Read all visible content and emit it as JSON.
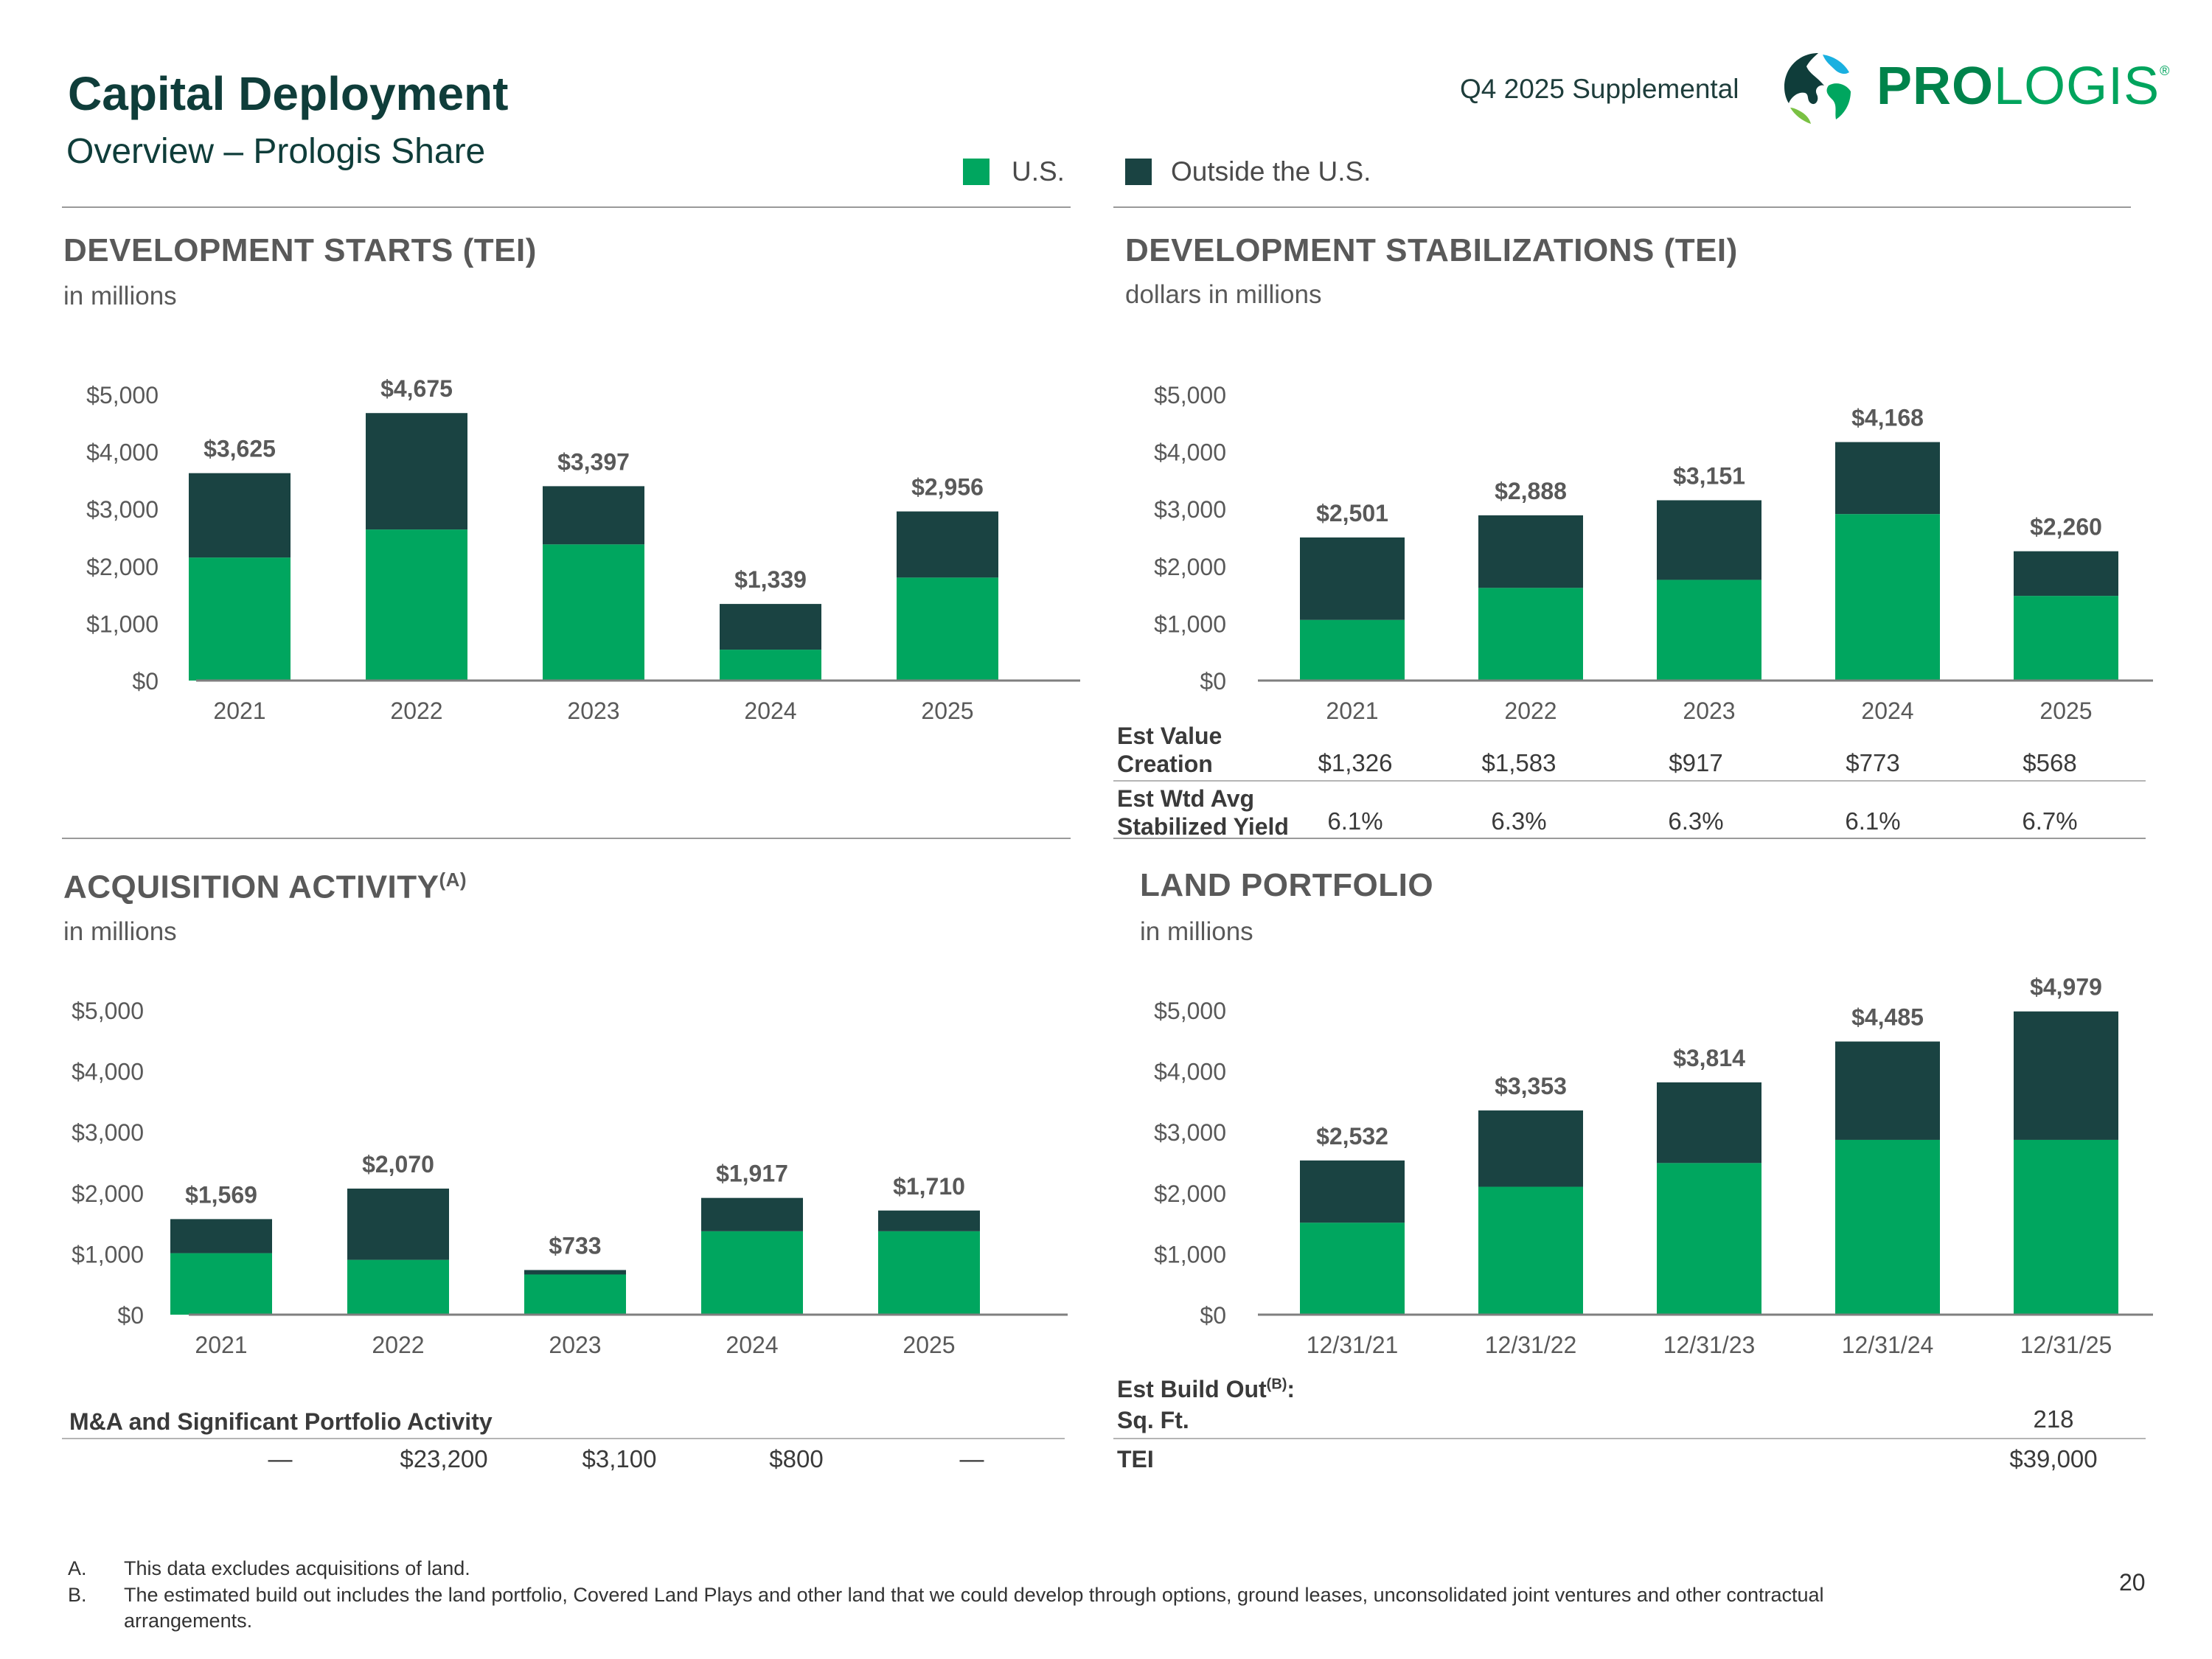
{
  "header": {
    "title": "Capital Deployment",
    "subtitle": "Overview – Prologis Share",
    "supplemental": "Q4 2025 Supplemental",
    "logo_text_bold": "PRO",
    "logo_text_light": "LOGIS",
    "logo_mark": "®"
  },
  "legend": {
    "us": "U.S.",
    "outside": "Outside the U.S."
  },
  "colors": {
    "us": "#00a65f",
    "outside": "#1a4342",
    "title": "#0f3d3a"
  },
  "sections": {
    "dev_starts": {
      "title": "DEVELOPMENT STARTS (TEI)",
      "subtitle": "in millions"
    },
    "dev_stab": {
      "title": "DEVELOPMENT STABILIZATIONS (TEI)",
      "subtitle": "dollars in millions"
    },
    "acq": {
      "title": "ACQUISITION ACTIVITY",
      "title_sup": "(A)",
      "subtitle": "in millions"
    },
    "land": {
      "title": "LAND PORTFOLIO",
      "subtitle": "in millions"
    }
  },
  "chart_data": [
    {
      "id": "dev_starts",
      "type": "bar",
      "stacked": true,
      "title": "DEVELOPMENT STARTS (TEI)",
      "categories": [
        "2021",
        "2022",
        "2023",
        "2024",
        "2025"
      ],
      "series": [
        {
          "name": "U.S.",
          "values": [
            2150,
            2640,
            2380,
            540,
            1800
          ]
        },
        {
          "name": "Outside the U.S.",
          "values": [
            1475,
            2035,
            1017,
            799,
            1156
          ]
        }
      ],
      "totals": [
        "$3,625",
        "$4,675",
        "$3,397",
        "$1,339",
        "$2,956"
      ],
      "yticks": [
        "$0",
        "$1,000",
        "$2,000",
        "$3,000",
        "$4,000",
        "$5,000"
      ],
      "ylim": [
        0,
        5000
      ]
    },
    {
      "id": "dev_stab",
      "type": "bar",
      "stacked": true,
      "title": "DEVELOPMENT STABILIZATIONS (TEI)",
      "categories": [
        "2021",
        "2022",
        "2023",
        "2024",
        "2025"
      ],
      "series": [
        {
          "name": "U.S.",
          "values": [
            1060,
            1620,
            1760,
            2910,
            1480
          ]
        },
        {
          "name": "Outside the U.S.",
          "values": [
            1441,
            1268,
            1391,
            1258,
            780
          ]
        }
      ],
      "totals": [
        "$2,501",
        "$2,888",
        "$3,151",
        "$4,168",
        "$2,260"
      ],
      "yticks": [
        "$0",
        "$1,000",
        "$2,000",
        "$3,000",
        "$4,000",
        "$5,000"
      ],
      "ylim": [
        0,
        5000
      ]
    },
    {
      "id": "acq",
      "type": "bar",
      "stacked": true,
      "title": "ACQUISITION ACTIVITY",
      "categories": [
        "2021",
        "2022",
        "2023",
        "2024",
        "2025"
      ],
      "series": [
        {
          "name": "U.S.",
          "values": [
            1010,
            900,
            660,
            1370,
            1370
          ]
        },
        {
          "name": "Outside the U.S.",
          "values": [
            559,
            1170,
            73,
            547,
            340
          ]
        }
      ],
      "totals": [
        "$1,569",
        "$2,070",
        "$733",
        "$1,917",
        "$1,710"
      ],
      "yticks": [
        "$0",
        "$1,000",
        "$2,000",
        "$3,000",
        "$4,000",
        "$5,000"
      ],
      "ylim": [
        0,
        5000
      ]
    },
    {
      "id": "land",
      "type": "bar",
      "stacked": true,
      "title": "LAND PORTFOLIO",
      "categories": [
        "12/31/21",
        "12/31/22",
        "12/31/23",
        "12/31/24",
        "12/31/25"
      ],
      "series": [
        {
          "name": "U.S.",
          "values": [
            1510,
            2100,
            2490,
            2870,
            2870
          ]
        },
        {
          "name": "Outside the U.S.",
          "values": [
            1022,
            1253,
            1324,
            1615,
            2109
          ]
        }
      ],
      "totals": [
        "$2,532",
        "$3,353",
        "$3,814",
        "$4,485",
        "$4,979"
      ],
      "yticks": [
        "$0",
        "$1,000",
        "$2,000",
        "$3,000",
        "$4,000",
        "$5,000"
      ],
      "ylim": [
        0,
        5000
      ]
    }
  ],
  "stab_table": {
    "row1_label_a": "Est Value",
    "row1_label_b": "Creation",
    "row1_values": [
      "$1,326",
      "$1,583",
      "$917",
      "$773",
      "$568"
    ],
    "row2_label_a": "Est Wtd Avg",
    "row2_label_b": "Stabilized Yield",
    "row2_values": [
      "6.1%",
      "6.3%",
      "6.3%",
      "6.1%",
      "6.7%"
    ]
  },
  "acq_table": {
    "label": "M&A and Significant Portfolio Activity",
    "values": [
      "—",
      "$23,200",
      "$3,100",
      "$800",
      "—"
    ]
  },
  "land_table": {
    "label": "Est Build Out",
    "label_sup": "(B)",
    "label_colon": ":",
    "row1_label": "Sq. Ft.",
    "row1_value": "218",
    "row2_label": "TEI",
    "row2_value": "$39,000"
  },
  "footnotes": {
    "a_marker": "A.",
    "a_text": "This data excludes acquisitions of land.",
    "b_marker": "B.",
    "b_text_line1": "The estimated build out includes the land portfolio, Covered Land Plays and other land that we could develop through options, ground leases, unconsolidated joint ventures and other contractual",
    "b_text_line2": "arrangements."
  },
  "page_number": "20"
}
